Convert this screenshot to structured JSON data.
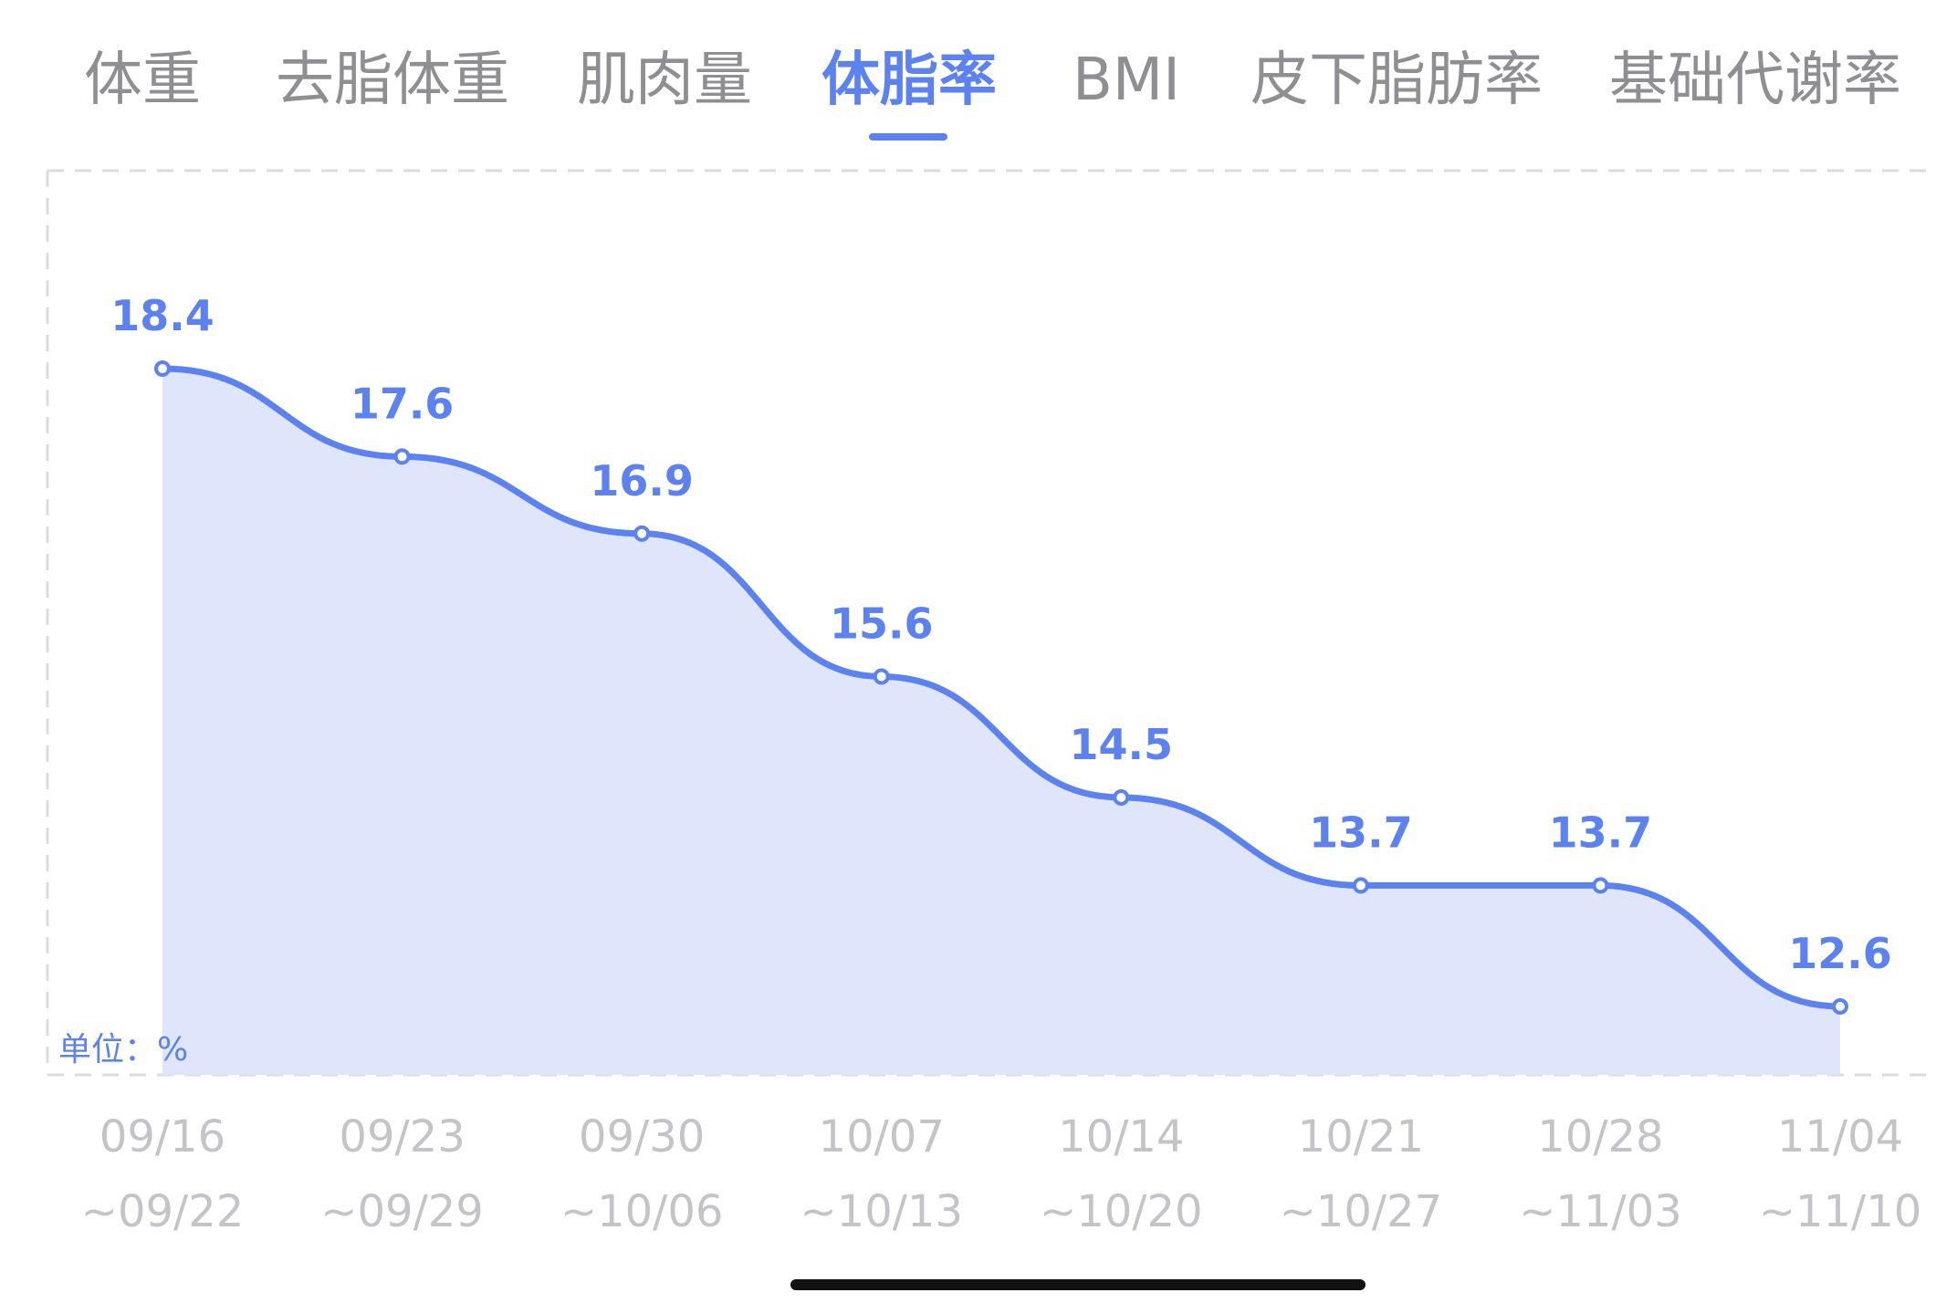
{
  "tabs": [
    {
      "label": "体重"
    },
    {
      "label": "去脂体重"
    },
    {
      "label": "肌肉量"
    },
    {
      "label": "体脂率",
      "active": true
    },
    {
      "label": "BMI"
    },
    {
      "label": "皮下脂肪率"
    },
    {
      "label": "基础代谢率"
    }
  ],
  "colors": {
    "accent": "#5b82f0",
    "area_fill": "#dfe6fc",
    "tick_text": "#c4c4c8",
    "inactive_tab": "#8e8e93",
    "grid": "#dcdce0"
  },
  "chart_data": {
    "type": "area",
    "unit_label": "单位：%",
    "categories": [
      [
        "09/16",
        "~09/22"
      ],
      [
        "09/23",
        "~09/29"
      ],
      [
        "09/30",
        "~10/06"
      ],
      [
        "10/07",
        "~10/13"
      ],
      [
        "10/14",
        "~10/20"
      ],
      [
        "10/21",
        "~10/27"
      ],
      [
        "10/28",
        "~11/03"
      ],
      [
        "11/04",
        "~11/10"
      ]
    ],
    "values": [
      18.4,
      17.6,
      16.9,
      15.6,
      14.5,
      13.7,
      13.7,
      12.6
    ],
    "data_labels": [
      "18.4",
      "17.6",
      "16.9",
      "15.6",
      "14.5",
      "13.7",
      "13.7",
      "12.6"
    ],
    "ylim": [
      12.0,
      18.4
    ],
    "grid": "dashed border",
    "legend": "none"
  }
}
